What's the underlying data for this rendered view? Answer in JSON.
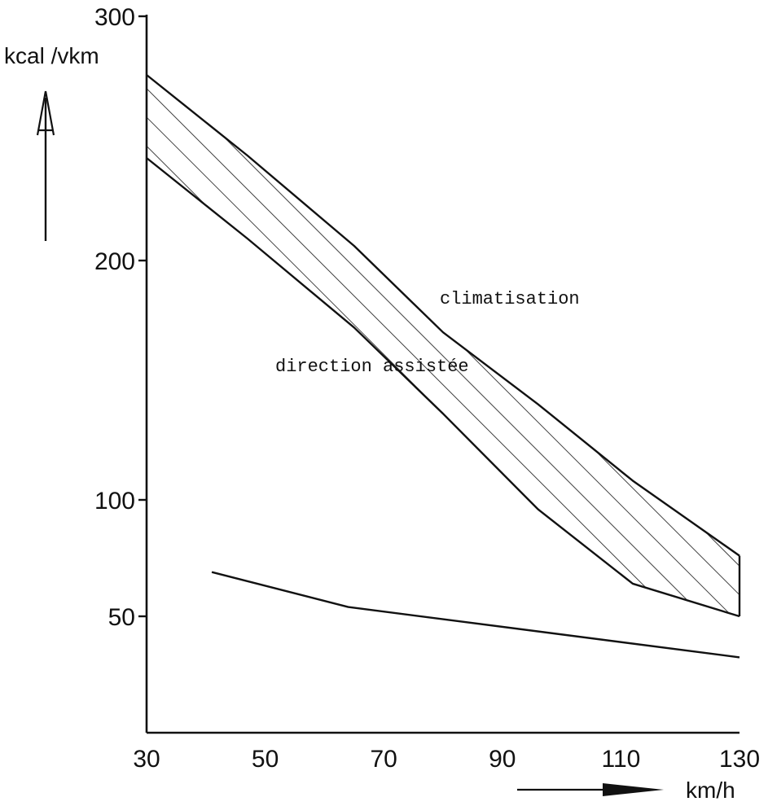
{
  "chart_data": {
    "type": "area",
    "title": "",
    "xlabel": "km/h",
    "ylabel": "kcal /vkm",
    "x_ticks": [
      30,
      50,
      70,
      90,
      110,
      130
    ],
    "y_ticks": [
      50,
      100,
      200,
      300
    ],
    "xlim": [
      30,
      130
    ],
    "grid": false,
    "series": [
      {
        "name": "climatisation",
        "style": "hatched-band",
        "x": [
          30,
          47,
          65,
          80,
          96,
          112,
          130
        ],
        "upper": [
          276,
          243,
          206,
          170,
          140,
          108,
          76
        ],
        "lower": [
          242,
          209,
          172,
          136,
          96,
          64,
          50
        ]
      },
      {
        "name": "direction assistée",
        "style": "line",
        "x": [
          41,
          64,
          130
        ],
        "values": [
          69,
          54,
          41
        ]
      }
    ],
    "colors": {
      "ink": "#111111",
      "background": "#ffffff"
    }
  }
}
